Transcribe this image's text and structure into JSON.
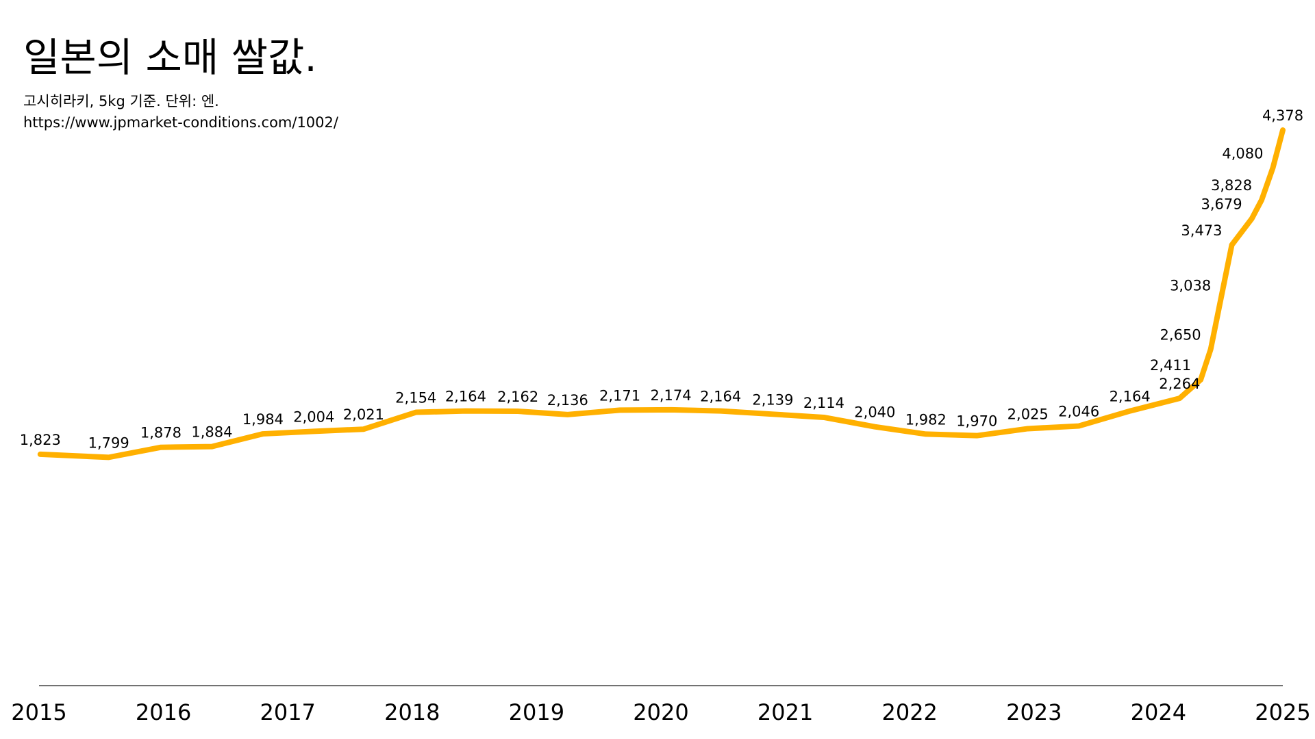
{
  "chart_data": {
    "type": "line",
    "title": "일본의 소매 쌀값.",
    "subtitle": "고시히라키, 5kg 기준. 단위: 엔.",
    "source": "https://www.jpmarket-conditions.com/1002/",
    "x": [
      2015.01,
      2015.56,
      2015.98,
      2016.39,
      2016.8,
      2017.21,
      2017.61,
      2018.03,
      2018.43,
      2018.85,
      2019.25,
      2019.67,
      2020.08,
      2020.48,
      2020.9,
      2021.31,
      2021.72,
      2022.13,
      2022.54,
      2022.95,
      2023.36,
      2023.77,
      2024.17,
      2024.34,
      2024.42,
      2024.5,
      2024.59,
      2024.75,
      2024.83,
      2024.92,
      2025.0
    ],
    "values": [
      1823,
      1799,
      1878,
      1884,
      1984,
      2004,
      2021,
      2154,
      2164,
      2162,
      2136,
      2171,
      2174,
      2164,
      2139,
      2114,
      2040,
      1982,
      1970,
      2025,
      2046,
      2164,
      2264,
      2411,
      2650,
      3038,
      3473,
      3679,
      3828,
      4080,
      4378
    ],
    "value_labels": [
      "1,823",
      "1,799",
      "1,878",
      "1,884",
      "1,984",
      "2,004",
      "2,021",
      "2,154",
      "2,164",
      "2,162",
      "2,136",
      "2,171",
      "2,174",
      "2,164",
      "2,139",
      "2,114",
      "2,040",
      "1,982",
      "1,970",
      "2,025",
      "2,046",
      "2,164",
      "2,264",
      "2,411",
      "2,650",
      "3,038",
      "3,473",
      "3,679",
      "3,828",
      "4,080",
      "4,378"
    ],
    "color": "#ffb000",
    "xlim": [
      2015,
      2025
    ],
    "xticks": [
      2015,
      2016,
      2017,
      2018,
      2019,
      2020,
      2021,
      2022,
      2023,
      2024,
      2025
    ],
    "ylim": [
      0,
      4400
    ]
  }
}
